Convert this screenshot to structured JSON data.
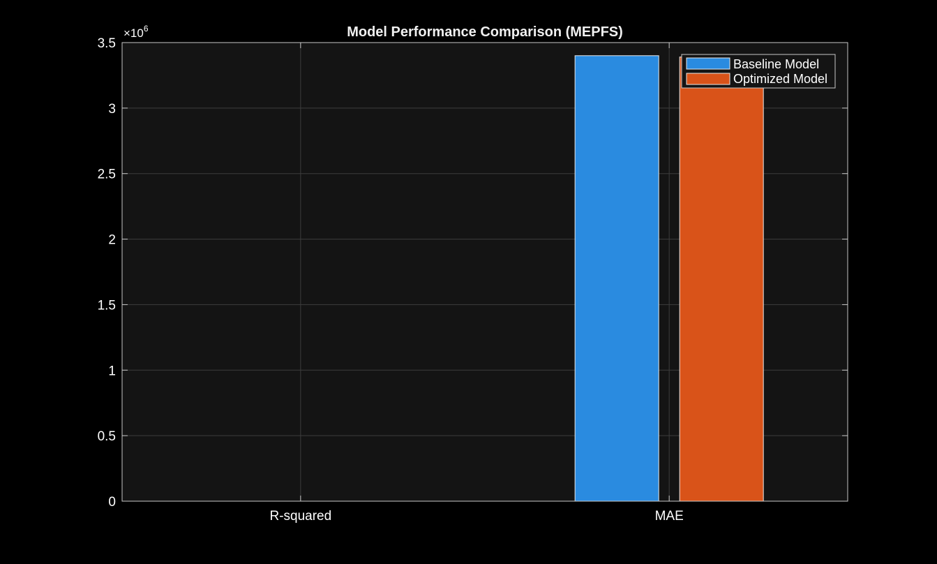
{
  "chart_data": {
    "type": "bar",
    "title": "Model Performance Comparison (MEPFS)",
    "categories": [
      "R-squared",
      "MAE"
    ],
    "series": [
      {
        "name": "Baseline Model",
        "values": [
          0.9,
          3400000
        ],
        "color": "#2a8be0"
      },
      {
        "name": "Optimized Model",
        "values": [
          0.9,
          3390000
        ],
        "color": "#d95319"
      }
    ],
    "ylim": [
      0,
      3500000
    ],
    "yticks": [
      0,
      0.5,
      1,
      1.5,
      2,
      2.5,
      3,
      3.5
    ],
    "ytick_labels": [
      "0",
      "0.5",
      "1",
      "1.5",
      "2",
      "2.5",
      "3",
      "3.5"
    ],
    "y_exponent_base": "×10",
    "y_exponent_power": "6",
    "y_multiplier": 1000000,
    "grid": true,
    "legend_position": "top-right",
    "colors": {
      "background": "#000000",
      "axes": "#141414",
      "grid": "#3d3d3d",
      "axis_line": "#c8c8c8"
    }
  }
}
